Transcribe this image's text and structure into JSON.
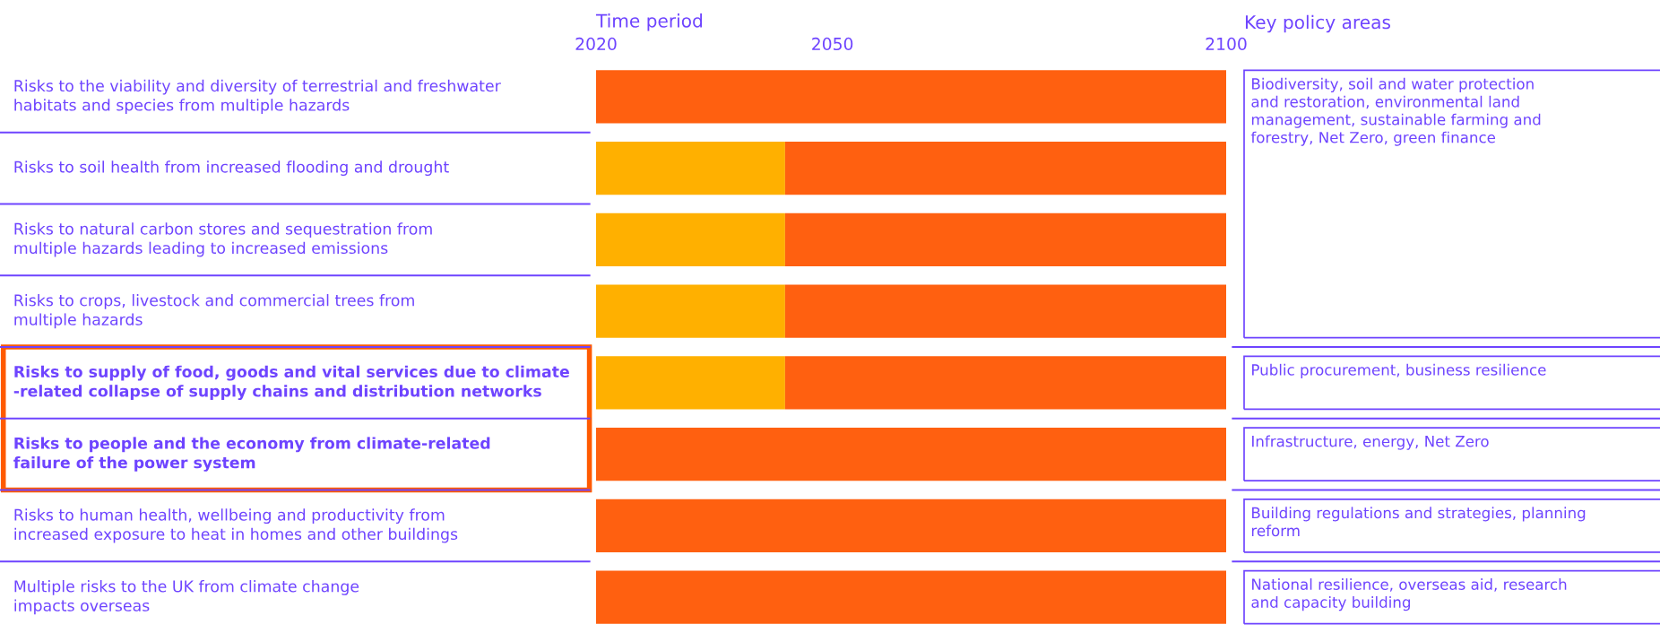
{
  "chart_data": {
    "type": "bar",
    "orientation": "horizontal",
    "xlabel": "Time period",
    "categories": [
      "Risks to the viability and diversity of terrestrial and freshwater\nhabitats and species from multiple hazards",
      "Risks to soil health from increased flooding and drought",
      "Risks to natural carbon stores and sequestration from\nmultiple hazards leading to increased emissions",
      "Risks to crops, livestock and commercial trees from\nmultiple hazards",
      "Risks to supply of food, goods and vital services due to climate\n-related collapse of supply chains and distribution networks",
      "Risks to people and the economy from climate-related\nfailure of the power system",
      "Risks to human health, wellbeing and productivity from\nincreased exposure to heat in homes and other buildings",
      "Multiple risks to the UK from climate change\nimpacts overseas"
    ],
    "series": [
      {
        "color": "#ffb000",
        "base": [
          null,
          2020,
          2020,
          2020,
          2020,
          null,
          null,
          null
        ],
        "values": [
          null,
          24,
          24,
          24,
          24,
          null,
          null,
          null
        ]
      },
      {
        "color": "#ff6010",
        "base": [
          2020,
          2044,
          2044,
          2044,
          2044,
          2020,
          2020,
          2020
        ],
        "values": [
          80,
          56,
          56,
          56,
          56,
          80,
          80,
          80
        ]
      }
    ],
    "xlim": [
      2020,
      2100
    ],
    "xticks": [
      2020,
      2050,
      2100
    ],
    "grid": false,
    "annotations": [
      "Key policy areas",
      "Biodiversity, soil and water protection\nand restoration, environmental land\nmanagement, sustainable farming and\nforestry, Net Zero, green finance",
      "Public procurement, business resilience",
      "Infrastructure, energy, Net Zero",
      "Building regulations and strategies, planning\nreform",
      "National resilience, overseas aid, research\nand capacity building"
    ]
  }
}
